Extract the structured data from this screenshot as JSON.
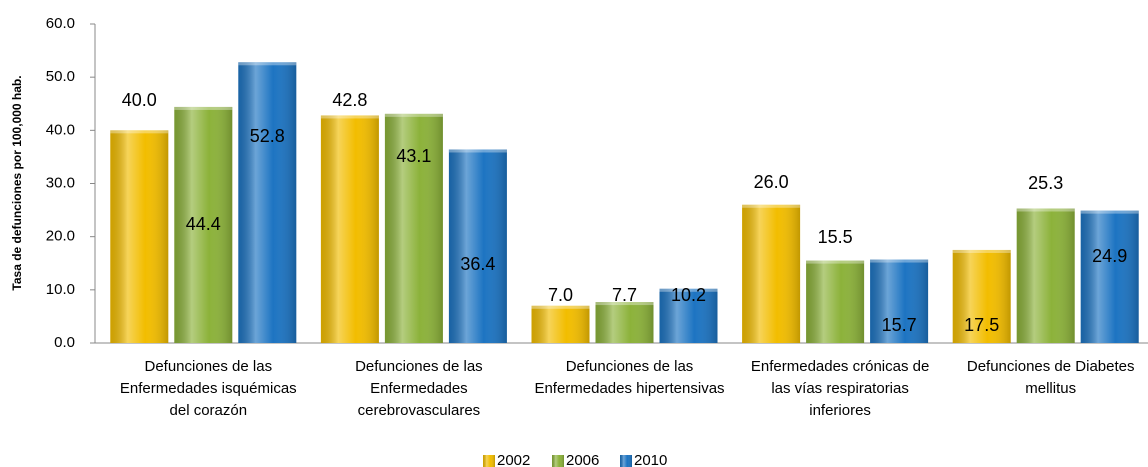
{
  "chart_data": {
    "type": "bar",
    "y_label": "Tasa de defunciones por 100,000 hab.",
    "categories": [
      "Defunciones de las Enfermedades isquémicas del corazón",
      "Defunciones de las Enfermedades cerebrovasculares",
      "Defunciones de las Enfermedades hipertensivas",
      "Enfermedades crónicas de las vías respiratorias inferiores",
      "Defunciones de Diabetes mellitus"
    ],
    "series": [
      {
        "name": "2002",
        "color": "#f2bd00",
        "values": [
          40.0,
          42.8,
          7.0,
          26.0,
          17.5
        ],
        "value_labels": [
          "40.0",
          "42.8",
          "7.0",
          "26.0",
          "17.5"
        ]
      },
      {
        "name": "2006",
        "color": "#8cb23a",
        "values": [
          44.4,
          43.1,
          7.7,
          15.5,
          25.3
        ],
        "value_labels": [
          "44.4",
          "43.1",
          "7.7",
          "15.5",
          "25.3"
        ]
      },
      {
        "name": "2010",
        "color": "#1d74c2",
        "values": [
          52.8,
          36.4,
          10.2,
          15.7,
          24.9
        ],
        "value_labels": [
          "52.8",
          "36.4",
          "10.2",
          "15.7",
          "24.9"
        ]
      }
    ],
    "ylim": [
      0,
      60
    ],
    "yticks": [
      {
        "value": 0,
        "label": "0.0"
      },
      {
        "value": 10,
        "label": "10.0"
      },
      {
        "value": 20,
        "label": "20.0"
      },
      {
        "value": 30,
        "label": "30.0"
      },
      {
        "value": 40,
        "label": "40.0"
      },
      {
        "value": 50,
        "label": "50.0"
      },
      {
        "value": 60,
        "label": "60.0"
      }
    ],
    "legend": "bottom"
  }
}
